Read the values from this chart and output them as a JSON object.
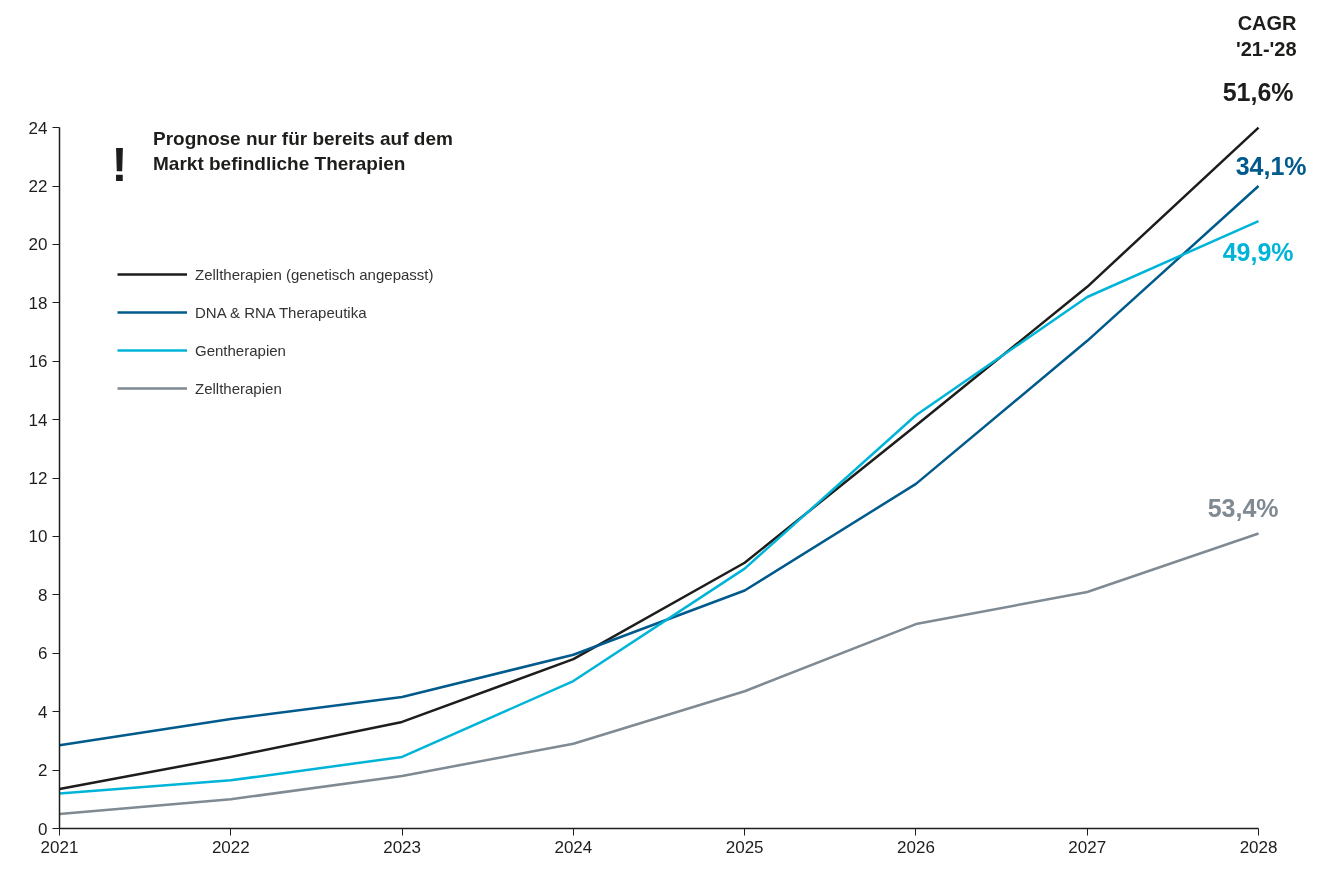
{
  "chart_data": {
    "type": "line",
    "x": [
      2021,
      2022,
      2023,
      2024,
      2025,
      2026,
      2027,
      2028
    ],
    "series": [
      {
        "name": "Zelltherapien (genetisch angepasst)",
        "color": "#1d1d1b",
        "values": [
          1.35,
          2.45,
          3.65,
          5.8,
          9.1,
          13.8,
          18.55,
          24
        ]
      },
      {
        "name": "DNA & RNA Therapeutika",
        "color": "#005a8c",
        "values": [
          2.85,
          3.75,
          4.5,
          5.95,
          8.15,
          11.8,
          16.7,
          22
        ]
      },
      {
        "name": "Gentherapien",
        "color": "#00b4d8",
        "values": [
          1.2,
          1.65,
          2.45,
          5.05,
          8.9,
          14.15,
          18.2,
          20.8
        ]
      },
      {
        "name": "Zelltherapien",
        "color": "#7f8a93",
        "values": [
          0.5,
          1.0,
          1.8,
          2.9,
          4.7,
          7.0,
          8.1,
          10.1
        ]
      }
    ],
    "annotations": [
      "CAGR\n'21-'28",
      "!",
      "Prognose nur für bereits auf dem\nMarkt befindliche Therapien",
      "51,6%",
      "34,1%",
      "49,9%",
      "53,4%"
    ],
    "xlim": [
      2021,
      2028
    ],
    "xticks": [
      2021,
      2022,
      2023,
      2024,
      2025,
      2026,
      2027,
      2028
    ],
    "ylim": [
      0,
      24
    ],
    "yticks": [
      0,
      2,
      4,
      6,
      8,
      10,
      12,
      14,
      16,
      18,
      20,
      22,
      24
    ],
    "grid": false,
    "legend": "top left",
    "marker": "none",
    "line_style": "solid"
  }
}
